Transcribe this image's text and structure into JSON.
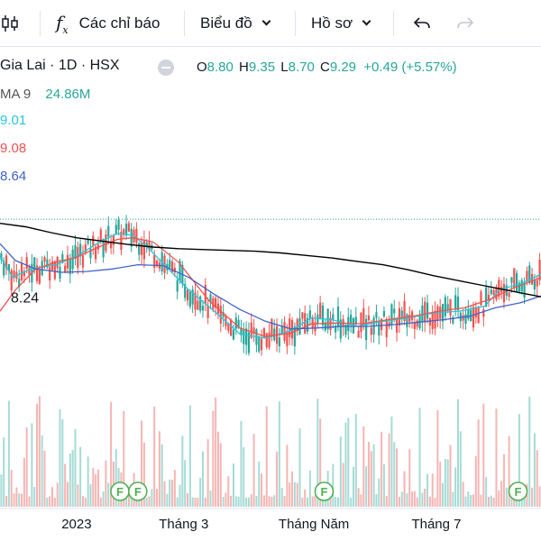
{
  "toolbar": {
    "indicators_label": "Các chỉ báo",
    "chart_type_label": "Biểu đồ",
    "profile_label": "Hồ sơ",
    "fx_glyph": "f"
  },
  "legend": {
    "symbol": "Gia Lai · 1D · HSX",
    "open_label": "O",
    "open": "8.80",
    "high_label": "H",
    "high": "9.35",
    "low_label": "L",
    "low": "8.70",
    "close_label": "C",
    "close": "9.29",
    "change": "+0.49 (+5.57%)",
    "vol_label": "MA 9",
    "vol_value": "24.86M",
    "ma1": "9.01",
    "ma2": "9.08",
    "ma3": "8.64"
  },
  "colors": {
    "up": "#26a69a",
    "down": "#ef5350",
    "ma_fast": "#26c6da",
    "ma_mid": "#ef5350",
    "ma_slow": "#3f64c8",
    "ma_long": "#000000",
    "vol_up": "#a6dbd5",
    "vol_down": "#f5b5b3"
  },
  "icons": [
    "candlestick-icon",
    "fx-icon",
    "chevron-down-icon",
    "eye-off-icon",
    "undo-icon",
    "redo-icon"
  ],
  "chart_data": {
    "type": "line",
    "price_range": [
      7.4,
      9.75
    ],
    "annotation": {
      "label": "8.24",
      "value": 8.24
    },
    "current_price_line": 9.29,
    "x_tick_labels": [
      {
        "label": "2023",
        "day": 30
      },
      {
        "label": "Tháng 3",
        "day": 72
      },
      {
        "label": "Tháng Năm",
        "day": 123
      },
      {
        "label": "Tháng 7",
        "day": 171
      }
    ],
    "dividend_markers": [
      {
        "label": "F",
        "day": 47
      },
      {
        "label": "F",
        "day": 54
      },
      {
        "label": "F",
        "day": 127
      },
      {
        "label": "F",
        "day": 203
      }
    ],
    "series": [
      {
        "key": "ma_fast",
        "points": [
          [
            0,
            8.85
          ],
          [
            5,
            8.6
          ],
          [
            12,
            8.7
          ],
          [
            22,
            8.75
          ],
          [
            30,
            8.85
          ],
          [
            38,
            9.0
          ],
          [
            46,
            9.12
          ],
          [
            52,
            9.1
          ],
          [
            58,
            8.95
          ],
          [
            66,
            8.7
          ],
          [
            74,
            8.45
          ],
          [
            84,
            8.2
          ],
          [
            94,
            7.93
          ],
          [
            104,
            7.88
          ],
          [
            114,
            7.97
          ],
          [
            122,
            8.12
          ],
          [
            130,
            8.1
          ],
          [
            140,
            8.02
          ],
          [
            150,
            8.08
          ],
          [
            160,
            8.12
          ],
          [
            170,
            8.18
          ],
          [
            180,
            8.2
          ],
          [
            190,
            8.26
          ],
          [
            196,
            8.46
          ],
          [
            204,
            8.52
          ],
          [
            212,
            8.64
          ]
        ]
      },
      {
        "key": "ma_mid",
        "points": [
          [
            0,
            8.2
          ],
          [
            6,
            8.45
          ],
          [
            14,
            8.7
          ],
          [
            22,
            8.78
          ],
          [
            30,
            8.84
          ],
          [
            38,
            8.95
          ],
          [
            46,
            9.05
          ],
          [
            52,
            9.07
          ],
          [
            60,
            9.02
          ],
          [
            70,
            8.78
          ],
          [
            82,
            8.32
          ],
          [
            94,
            8.0
          ],
          [
            104,
            7.9
          ],
          [
            114,
            7.94
          ],
          [
            122,
            8.05
          ],
          [
            132,
            8.06
          ],
          [
            142,
            8.05
          ],
          [
            152,
            8.1
          ],
          [
            162,
            8.14
          ],
          [
            172,
            8.2
          ],
          [
            182,
            8.24
          ],
          [
            192,
            8.34
          ],
          [
            200,
            8.46
          ],
          [
            212,
            8.6
          ]
        ]
      },
      {
        "key": "ma_slow",
        "points": [
          [
            0,
            9.0
          ],
          [
            6,
            8.8
          ],
          [
            14,
            8.7
          ],
          [
            24,
            8.66
          ],
          [
            34,
            8.67
          ],
          [
            44,
            8.7
          ],
          [
            54,
            8.75
          ],
          [
            64,
            8.74
          ],
          [
            74,
            8.6
          ],
          [
            84,
            8.4
          ],
          [
            94,
            8.22
          ],
          [
            104,
            8.08
          ],
          [
            114,
            7.99
          ],
          [
            124,
            8.0
          ],
          [
            134,
            8.02
          ],
          [
            144,
            8.02
          ],
          [
            154,
            8.04
          ],
          [
            164,
            8.07
          ],
          [
            174,
            8.1
          ],
          [
            184,
            8.14
          ],
          [
            194,
            8.24
          ],
          [
            204,
            8.3
          ],
          [
            212,
            8.38
          ]
        ]
      },
      {
        "key": "ma_long",
        "points": [
          [
            0,
            9.24
          ],
          [
            10,
            9.2
          ],
          [
            20,
            9.13
          ],
          [
            30,
            9.07
          ],
          [
            40,
            9.03
          ],
          [
            50,
            8.99
          ],
          [
            60,
            8.96
          ],
          [
            70,
            8.94
          ],
          [
            80,
            8.93
          ],
          [
            90,
            8.92
          ],
          [
            100,
            8.91
          ],
          [
            110,
            8.89
          ],
          [
            120,
            8.86
          ],
          [
            130,
            8.83
          ],
          [
            140,
            8.79
          ],
          [
            150,
            8.75
          ],
          [
            160,
            8.69
          ],
          [
            170,
            8.62
          ],
          [
            180,
            8.56
          ],
          [
            190,
            8.5
          ],
          [
            200,
            8.44
          ],
          [
            212,
            8.37
          ]
        ]
      }
    ]
  }
}
